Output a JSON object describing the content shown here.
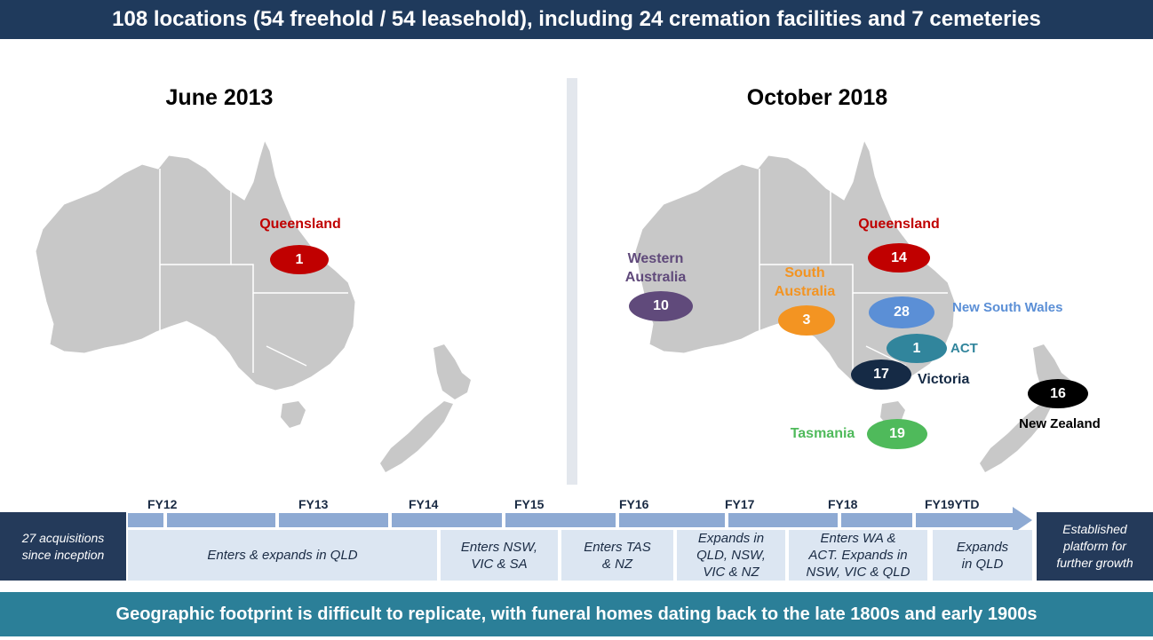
{
  "header": {
    "title": "108 locations (54 freehold / 54 leasehold), including 24 cremation facilities and 7 cemeteries"
  },
  "left_map": {
    "title": "June 2013",
    "regions": [
      {
        "name": "Queensland",
        "count": "1",
        "color": "#c00000"
      }
    ]
  },
  "right_map": {
    "title": "October 2018",
    "regions": [
      {
        "name": "Queensland",
        "count": "14",
        "color": "#c00000"
      },
      {
        "name_line1": "Western",
        "name_line2": "Australia",
        "count": "10",
        "color": "#604a7b"
      },
      {
        "name_line1": "South",
        "name_line2": "Australia",
        "count": "3",
        "color": "#f39422"
      },
      {
        "name": "New South Wales",
        "count": "28",
        "color": "#5b8fd6"
      },
      {
        "name": "ACT",
        "count": "1",
        "color": "#31859c"
      },
      {
        "name": "Victoria",
        "count": "17",
        "color": "#152a45"
      },
      {
        "name": "New Zealand",
        "count": "16",
        "color": "#000000"
      },
      {
        "name": "Tasmania",
        "count": "19",
        "color": "#4fba5b"
      }
    ]
  },
  "timeline": {
    "years": [
      "FY12",
      "FY13",
      "FY14",
      "FY15",
      "FY16",
      "FY17",
      "FY18",
      "FY19YTD"
    ],
    "left_box": {
      "line1": "27 acquisitions",
      "line2": "since inception"
    },
    "right_box": {
      "line1": "Established",
      "line2": "platform for",
      "line3": "further growth"
    },
    "milestones": [
      {
        "line1": "Enters & expands in QLD"
      },
      {
        "line1": "Enters NSW,",
        "line2": "VIC & SA"
      },
      {
        "line1": "Enters TAS",
        "line2": "& NZ"
      },
      {
        "line1": "Expands in",
        "line2": "QLD, NSW,",
        "line3": "VIC & NZ"
      },
      {
        "line1": "Enters WA &",
        "line2": "ACT. Expands in",
        "line3": "NSW, VIC & QLD"
      },
      {
        "line1": "Expands",
        "line2": "in QLD"
      }
    ]
  },
  "footer": {
    "text": "Geographic footprint is difficult to replicate, with funeral homes dating back to the late 1800s and early 1900s"
  }
}
